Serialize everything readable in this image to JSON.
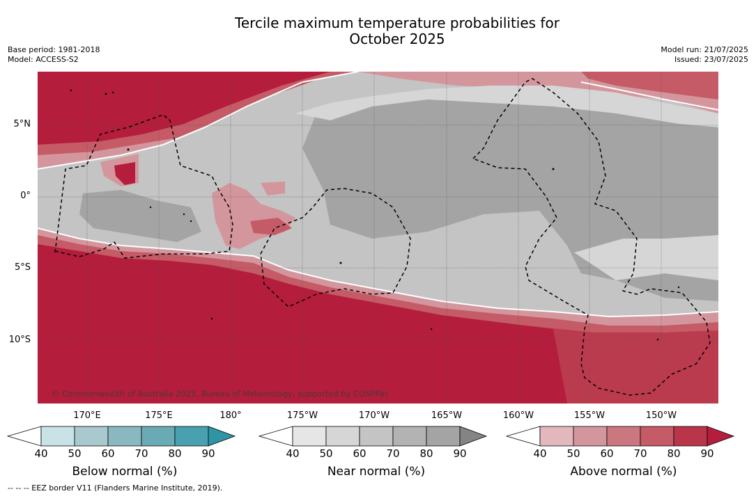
{
  "title_line1": "Tercile maximum temperature probabilities for",
  "title_line2": "October 2025",
  "base_period": "Base period: 1981-2018",
  "model": "Model: ACCESS-S2",
  "model_run": "Model run: 21/07/2025",
  "issued": "Issued: 23/07/2025",
  "copyright": "© Commonwealth of Australia 2025, Bureau of Meteorology, supported by COSPPac",
  "footnote": "--  --  -- EEZ border V11 (Flanders Marine Institute, 2019).",
  "lat_labels": [
    "5°N",
    "0°",
    "5°S",
    "10°S"
  ],
  "lon_labels": [
    "170°E",
    "175°E",
    "180°",
    "175°W",
    "170°W",
    "165°W",
    "160°W",
    "155°W",
    "150°W"
  ],
  "colorbars": [
    {
      "name": "below",
      "title": "Below normal (%)",
      "ticks": [
        "40",
        "50",
        "60",
        "70",
        "80",
        "90"
      ],
      "colors": [
        "#ffffff",
        "#c9e2e6",
        "#a9c9ce",
        "#8ab8c1",
        "#6aaab5",
        "#49a1b0",
        "#2f95a5"
      ]
    },
    {
      "name": "near",
      "title": "Near normal (%)",
      "ticks": [
        "40",
        "50",
        "60",
        "70",
        "80",
        "90"
      ],
      "colors": [
        "#ffffff",
        "#e6e6e6",
        "#d6d6d6",
        "#c4c4c4",
        "#b3b3b3",
        "#a4a4a4",
        "#848484"
      ]
    },
    {
      "name": "above",
      "title": "Above normal (%)",
      "ticks": [
        "40",
        "50",
        "60",
        "70",
        "80",
        "90"
      ],
      "colors": [
        "#ffffff",
        "#e2b8bd",
        "#d4969d",
        "#cb7780",
        "#c45b66",
        "#b9364a",
        "#b41d3b"
      ]
    }
  ],
  "map_colors": {
    "above_90": "#b41d3b",
    "above_80": "#bb3b4e",
    "above_70": "#c45b66",
    "above_60": "#cb7780",
    "above_50": "#d4969d",
    "near_70": "#a4a4a4",
    "near_60": "#c4c4c4",
    "near_50": "#d6d6d6",
    "near_40": "#e6e6e6"
  }
}
